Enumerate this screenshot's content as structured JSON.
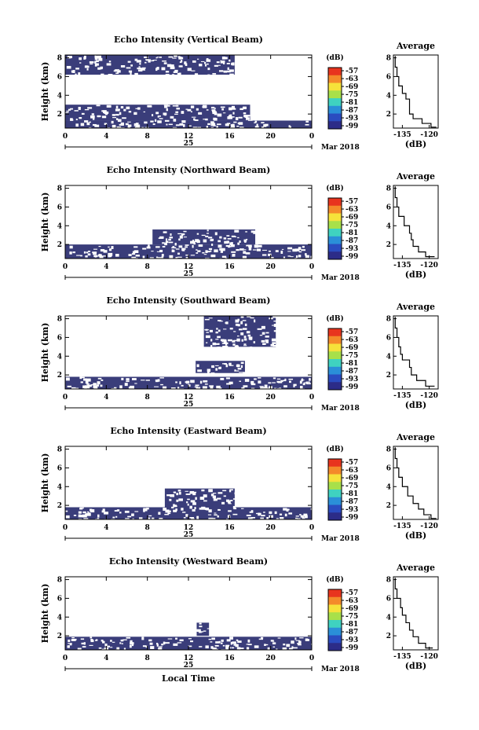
{
  "colors": {
    "echo": "#3a3d7a",
    "background": "#ffffff",
    "axis": "#000000"
  },
  "colorbar": {
    "unit_label": "(dB)",
    "ticks": [
      "-57",
      "-63",
      "-69",
      "-75",
      "-81",
      "-87",
      "-93",
      "-99"
    ],
    "stops": [
      "#e8341e",
      "#f48a2a",
      "#f6e23a",
      "#a8e04a",
      "#3fd2c0",
      "#2a8fd8",
      "#2a4cc0",
      "#2c2c88"
    ]
  },
  "date_label": "Mar 2018",
  "day_label": "25",
  "time_label": "Local Time",
  "avg_title": "Average",
  "avg_xlabel": "(dB)",
  "chart_data": [
    {
      "type": "heatmap",
      "title": "Echo Intensity (Vertical Beam)",
      "ylabel": "Height (km)",
      "xticks": [
        "0",
        "4",
        "8",
        "12",
        "16",
        "20",
        "0"
      ],
      "yticks": [
        "2",
        "4",
        "6",
        "8"
      ],
      "xlim": [
        0,
        24
      ],
      "ylim": [
        0.5,
        8.3
      ],
      "echo_layers": [
        {
          "from_hour": 0,
          "to_hour": 24,
          "bottom_km": 0.5,
          "top_km": 1.3
        },
        {
          "from_hour": 0,
          "to_hour": 18,
          "bottom_km": 1.3,
          "top_km": 3.0
        },
        {
          "from_hour": 0,
          "to_hour": 16.5,
          "bottom_km": 6.2,
          "top_km": 8.3
        }
      ],
      "average_profile": {
        "xticks": [
          "-135",
          "-120"
        ],
        "yticks": [
          "2",
          "4",
          "6",
          "8"
        ],
        "xlim": [
          -140,
          -115
        ],
        "ylim": [
          0.5,
          8.3
        ],
        "height_km": [
          8.2,
          7.0,
          6.0,
          5.0,
          4.2,
          3.6,
          2.8,
          2.0,
          1.5,
          1.0,
          0.6
        ],
        "echo_db": [
          -139,
          -138,
          -137,
          -135,
          -133,
          -131,
          -131,
          -129,
          -124,
          -119,
          -116
        ]
      }
    },
    {
      "type": "heatmap",
      "title": "Echo Intensity (Northward Beam)",
      "ylabel": "Height (km)",
      "xticks": [
        "0",
        "4",
        "8",
        "12",
        "16",
        "20",
        "0"
      ],
      "yticks": [
        "2",
        "4",
        "6",
        "8"
      ],
      "xlim": [
        0,
        24
      ],
      "ylim": [
        0.5,
        8.3
      ],
      "echo_layers": [
        {
          "from_hour": 0,
          "to_hour": 24,
          "bottom_km": 0.5,
          "top_km": 2.0
        },
        {
          "from_hour": 8.5,
          "to_hour": 18.5,
          "bottom_km": 2.0,
          "top_km": 3.6
        }
      ],
      "average_profile": {
        "xticks": [
          "-135",
          "-120"
        ],
        "yticks": [
          "2",
          "4",
          "6",
          "8"
        ],
        "xlim": [
          -140,
          -115
        ],
        "ylim": [
          0.5,
          8.3
        ],
        "height_km": [
          8.2,
          7.0,
          6.0,
          5.0,
          4.0,
          3.2,
          2.5,
          1.8,
          1.2,
          0.7
        ],
        "echo_db": [
          -139,
          -138,
          -137,
          -134,
          -131,
          -130,
          -129,
          -126,
          -122,
          -117
        ]
      }
    },
    {
      "type": "heatmap",
      "title": "Echo Intensity (Southward Beam)",
      "ylabel": "Height (km)",
      "xticks": [
        "0",
        "4",
        "8",
        "12",
        "16",
        "20",
        "0"
      ],
      "yticks": [
        "2",
        "4",
        "6",
        "8"
      ],
      "xlim": [
        0,
        24
      ],
      "ylim": [
        0.5,
        8.3
      ],
      "echo_layers": [
        {
          "from_hour": 0,
          "to_hour": 24,
          "bottom_km": 0.5,
          "top_km": 1.8
        },
        {
          "from_hour": 12.7,
          "to_hour": 17.5,
          "bottom_km": 2.2,
          "top_km": 3.5
        },
        {
          "from_hour": 13.5,
          "to_hour": 20.5,
          "bottom_km": 5.0,
          "top_km": 8.3
        }
      ],
      "average_profile": {
        "xticks": [
          "-135",
          "-120"
        ],
        "yticks": [
          "2",
          "4",
          "6",
          "8"
        ],
        "xlim": [
          -140,
          -115
        ],
        "ylim": [
          0.5,
          8.3
        ],
        "height_km": [
          8.2,
          7.0,
          6.0,
          5.0,
          4.2,
          3.6,
          2.8,
          2.0,
          1.4,
          0.8
        ],
        "echo_db": [
          -139,
          -138,
          -137,
          -136,
          -135,
          -131,
          -130,
          -127,
          -122,
          -117
        ]
      }
    },
    {
      "type": "heatmap",
      "title": "Echo Intensity (Eastward Beam)",
      "ylabel": "Height (km)",
      "xticks": [
        "0",
        "4",
        "8",
        "12",
        "16",
        "20",
        "0"
      ],
      "yticks": [
        "2",
        "4",
        "6",
        "8"
      ],
      "xlim": [
        0,
        24
      ],
      "ylim": [
        0.5,
        8.3
      ],
      "echo_layers": [
        {
          "from_hour": 0,
          "to_hour": 24,
          "bottom_km": 0.5,
          "top_km": 1.8
        },
        {
          "from_hour": 9.7,
          "to_hour": 16.5,
          "bottom_km": 1.8,
          "top_km": 3.8
        }
      ],
      "average_profile": {
        "xticks": [
          "-135",
          "-120"
        ],
        "yticks": [
          "2",
          "4",
          "6",
          "8"
        ],
        "xlim": [
          -140,
          -115
        ],
        "ylim": [
          0.5,
          8.3
        ],
        "height_km": [
          8.2,
          7.0,
          6.0,
          5.0,
          4.0,
          3.0,
          2.2,
          1.6,
          1.0,
          0.6
        ],
        "echo_db": [
          -139,
          -138,
          -137,
          -135,
          -132,
          -129,
          -126,
          -123,
          -119,
          -116
        ]
      }
    },
    {
      "type": "heatmap",
      "title": "Echo Intensity (Westward Beam)",
      "ylabel": "Height (km)",
      "xticks": [
        "0",
        "4",
        "8",
        "12",
        "16",
        "20",
        "0"
      ],
      "yticks": [
        "2",
        "4",
        "6",
        "8"
      ],
      "xlim": [
        0,
        24
      ],
      "ylim": [
        0.5,
        8.3
      ],
      "echo_layers": [
        {
          "from_hour": 0,
          "to_hour": 24,
          "bottom_km": 0.5,
          "top_km": 1.9
        },
        {
          "from_hour": 12.8,
          "to_hour": 14.0,
          "bottom_km": 2.0,
          "top_km": 3.4
        }
      ],
      "average_profile": {
        "xticks": [
          "-135",
          "-120"
        ],
        "yticks": [
          "2",
          "4",
          "6",
          "8"
        ],
        "xlim": [
          -140,
          -115
        ],
        "ylim": [
          0.5,
          8.3
        ],
        "height_km": [
          8.2,
          7.0,
          6.0,
          5.0,
          4.2,
          3.4,
          2.6,
          1.9,
          1.2,
          0.7
        ],
        "echo_db": [
          -139,
          -138,
          -136,
          -135,
          -133,
          -131,
          -129,
          -126,
          -122,
          -118
        ]
      }
    }
  ]
}
